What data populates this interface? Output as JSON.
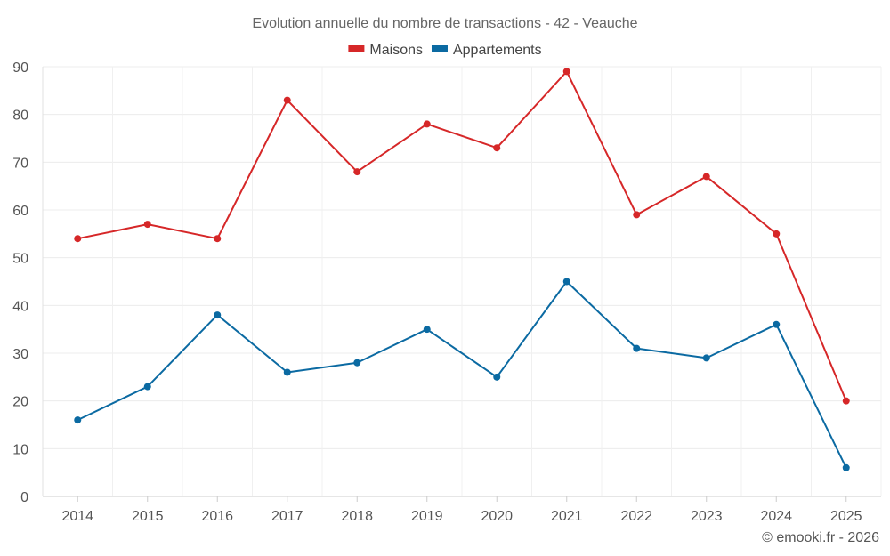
{
  "chart_data": {
    "type": "line",
    "title": "Evolution annuelle du nombre de transactions - 42 - Veauche",
    "categories": [
      "2014",
      "2015",
      "2016",
      "2017",
      "2018",
      "2019",
      "2020",
      "2021",
      "2022",
      "2023",
      "2024",
      "2025"
    ],
    "series": [
      {
        "name": "Maisons",
        "color": "#d62728",
        "values": [
          54,
          57,
          54,
          83,
          68,
          78,
          73,
          89,
          59,
          67,
          55,
          20
        ]
      },
      {
        "name": "Appartements",
        "color": "#0b6aa2",
        "values": [
          16,
          23,
          38,
          26,
          28,
          35,
          25,
          45,
          31,
          29,
          36,
          6
        ]
      }
    ],
    "ylim": [
      0,
      90
    ],
    "yticks": [
      0,
      10,
      20,
      30,
      40,
      50,
      60,
      70,
      80,
      90
    ],
    "xlabel": "",
    "ylabel": "",
    "grid": true,
    "legend": "top-center"
  },
  "footer": {
    "credit": "© emooki.fr - 2026"
  }
}
